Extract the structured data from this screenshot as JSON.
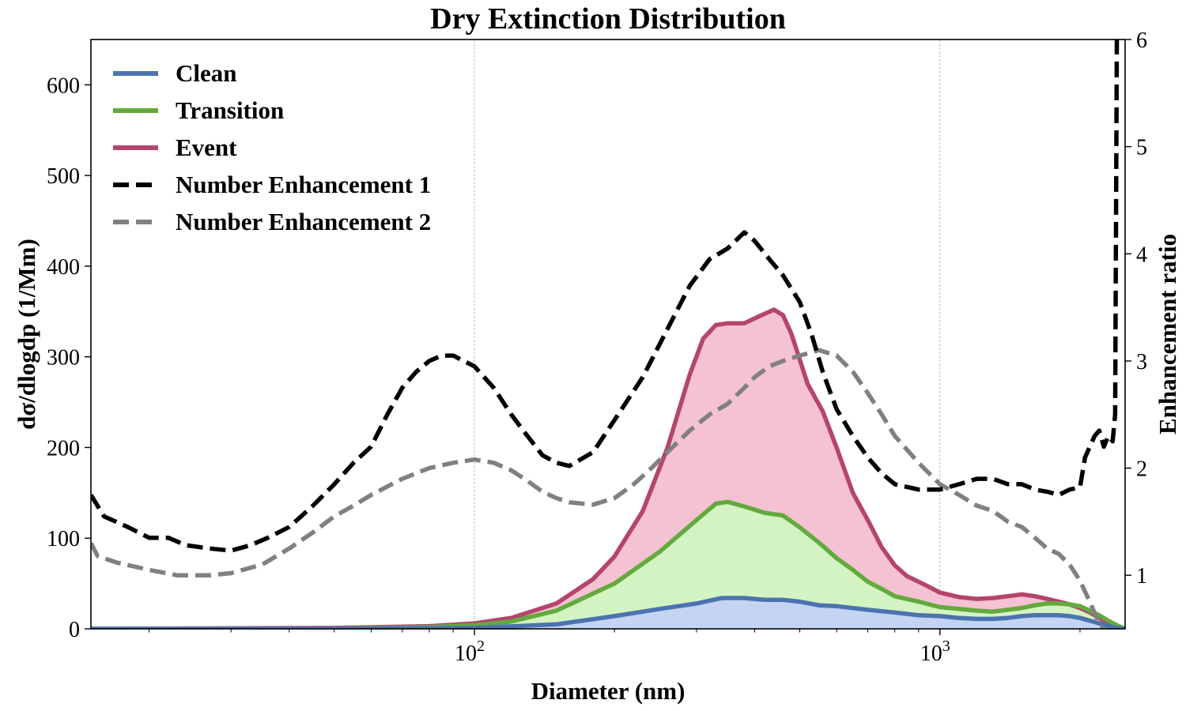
{
  "chart_data": {
    "type": "area",
    "title": "Dry Extinction Distribution",
    "xlabel": "Diameter (nm)",
    "ylabel": "dσ/dlogdp (1/Mm)",
    "y2label": "Enhancement ratio",
    "xscale": "log",
    "xlim": [
      15,
      2500
    ],
    "ylim": [
      0,
      650
    ],
    "y2lim": [
      0.5,
      6
    ],
    "grid": "x-major",
    "legend_position": "top-left",
    "x_ticks": [
      {
        "value": 100,
        "base": "10",
        "exp": "2"
      },
      {
        "value": 1000,
        "base": "10",
        "exp": "3"
      }
    ],
    "y_ticks": [
      "0",
      "100",
      "200",
      "300",
      "400",
      "500",
      "600"
    ],
    "y2_ticks": [
      "1",
      "2",
      "3",
      "4",
      "5",
      "6"
    ],
    "series": [
      {
        "name": "Clean",
        "axis": "left",
        "kind": "area",
        "color": "#4c72b0",
        "fill": "#c4d4f2",
        "x": [
          15,
          50,
          100,
          150,
          200,
          250,
          300,
          340,
          380,
          420,
          460,
          500,
          550,
          600,
          700,
          800,
          900,
          1000,
          1100,
          1200,
          1300,
          1400,
          1500,
          1600,
          1700,
          1800,
          1900,
          2000,
          2100,
          2200,
          2300,
          2400,
          2500
        ],
        "y": [
          0,
          0,
          1,
          5,
          14,
          22,
          28,
          34,
          34,
          32,
          32,
          30,
          26,
          25,
          21,
          18,
          15,
          14,
          12,
          11,
          11,
          12,
          14,
          15,
          15,
          15,
          14,
          12,
          9,
          6,
          3,
          1,
          0
        ]
      },
      {
        "name": "Transition",
        "axis": "left",
        "kind": "area",
        "color": "#63aa3e",
        "fill": "#d4f3c2",
        "x": [
          15,
          50,
          80,
          100,
          120,
          150,
          200,
          250,
          300,
          330,
          350,
          380,
          420,
          460,
          500,
          550,
          600,
          650,
          700,
          750,
          800,
          900,
          1000,
          1100,
          1200,
          1300,
          1400,
          1500,
          1600,
          1700,
          1800,
          1900,
          2000,
          2100,
          2200,
          2300,
          2400,
          2500
        ],
        "y": [
          0,
          0,
          2,
          4,
          8,
          20,
          50,
          85,
          120,
          138,
          140,
          135,
          128,
          125,
          112,
          95,
          78,
          65,
          52,
          44,
          36,
          30,
          24,
          22,
          20,
          19,
          21,
          23,
          26,
          28,
          28,
          27,
          25,
          20,
          15,
          9,
          4,
          0
        ]
      },
      {
        "name": "Event",
        "axis": "left",
        "kind": "area",
        "color": "#b5446e",
        "fill": "#f4c2d2",
        "x": [
          15,
          50,
          80,
          100,
          120,
          150,
          180,
          200,
          230,
          260,
          290,
          310,
          330,
          350,
          380,
          410,
          440,
          460,
          480,
          520,
          560,
          600,
          650,
          700,
          750,
          800,
          850,
          900,
          950,
          1000,
          1100,
          1200,
          1300,
          1400,
          1500,
          1600,
          1700,
          1800,
          1900,
          2000,
          2100,
          2200,
          2300,
          2400,
          2500
        ],
        "y": [
          0,
          1,
          3,
          6,
          12,
          28,
          55,
          80,
          130,
          200,
          280,
          320,
          335,
          337,
          337,
          345,
          352,
          346,
          325,
          270,
          240,
          200,
          150,
          120,
          90,
          70,
          58,
          52,
          46,
          40,
          35,
          33,
          34,
          36,
          38,
          36,
          33,
          30,
          27,
          23,
          18,
          12,
          6,
          2,
          0
        ]
      },
      {
        "name": "Number Enhancement 1",
        "axis": "right",
        "kind": "line",
        "color": "#000000",
        "dash": "dashed",
        "x": [
          15,
          16,
          18,
          20,
          22,
          24,
          27,
          30,
          33,
          36,
          40,
          45,
          50,
          55,
          60,
          65,
          70,
          75,
          80,
          85,
          90,
          100,
          110,
          120,
          130,
          140,
          150,
          160,
          180,
          200,
          230,
          260,
          290,
          320,
          350,
          380,
          400,
          430,
          460,
          500,
          530,
          560,
          600,
          650,
          700,
          750,
          800,
          900,
          1000,
          1100,
          1200,
          1300,
          1400,
          1500,
          1600,
          1700,
          1800,
          1900,
          2000,
          2050,
          2100,
          2150,
          2200,
          2250,
          2300,
          2350,
          2380,
          2400
        ],
        "y": [
          1.75,
          1.55,
          1.45,
          1.35,
          1.35,
          1.28,
          1.25,
          1.23,
          1.28,
          1.35,
          1.45,
          1.65,
          1.85,
          2.05,
          2.2,
          2.5,
          2.75,
          2.9,
          3.0,
          3.05,
          3.05,
          2.95,
          2.75,
          2.5,
          2.3,
          2.12,
          2.05,
          2.02,
          2.15,
          2.45,
          2.85,
          3.3,
          3.7,
          3.95,
          4.05,
          4.2,
          4.12,
          3.95,
          3.8,
          3.55,
          3.25,
          2.9,
          2.55,
          2.3,
          2.1,
          1.95,
          1.85,
          1.8,
          1.8,
          1.85,
          1.9,
          1.9,
          1.85,
          1.85,
          1.8,
          1.78,
          1.75,
          1.8,
          1.82,
          2.1,
          2.2,
          2.3,
          2.35,
          2.2,
          2.3,
          2.25,
          2.5,
          6.1
        ]
      },
      {
        "name": "Number Enhancement 2",
        "axis": "right",
        "kind": "line",
        "color": "#808080",
        "dash": "dashed",
        "x": [
          15,
          15.5,
          17,
          20,
          23,
          27,
          30,
          35,
          40,
          45,
          50,
          55,
          60,
          70,
          80,
          90,
          100,
          110,
          120,
          130,
          140,
          150,
          160,
          180,
          200,
          220,
          240,
          260,
          290,
          320,
          350,
          380,
          400,
          430,
          460,
          500,
          550,
          600,
          650,
          700,
          750,
          800,
          900,
          1000,
          1100,
          1200,
          1300,
          1400,
          1500,
          1600,
          1700,
          1800,
          1900,
          2000,
          2100,
          2200,
          2300
        ],
        "y": [
          1.3,
          1.18,
          1.12,
          1.05,
          1.0,
          1.0,
          1.02,
          1.1,
          1.25,
          1.4,
          1.55,
          1.65,
          1.75,
          1.9,
          2.0,
          2.05,
          2.08,
          2.05,
          1.98,
          1.88,
          1.78,
          1.72,
          1.68,
          1.66,
          1.72,
          1.85,
          2.0,
          2.15,
          2.35,
          2.5,
          2.6,
          2.75,
          2.85,
          2.95,
          3.0,
          3.05,
          3.1,
          3.05,
          2.9,
          2.7,
          2.5,
          2.3,
          2.05,
          1.85,
          1.75,
          1.65,
          1.6,
          1.5,
          1.45,
          1.35,
          1.25,
          1.2,
          1.1,
          0.95,
          0.75,
          0.55,
          0.45
        ]
      }
    ]
  }
}
